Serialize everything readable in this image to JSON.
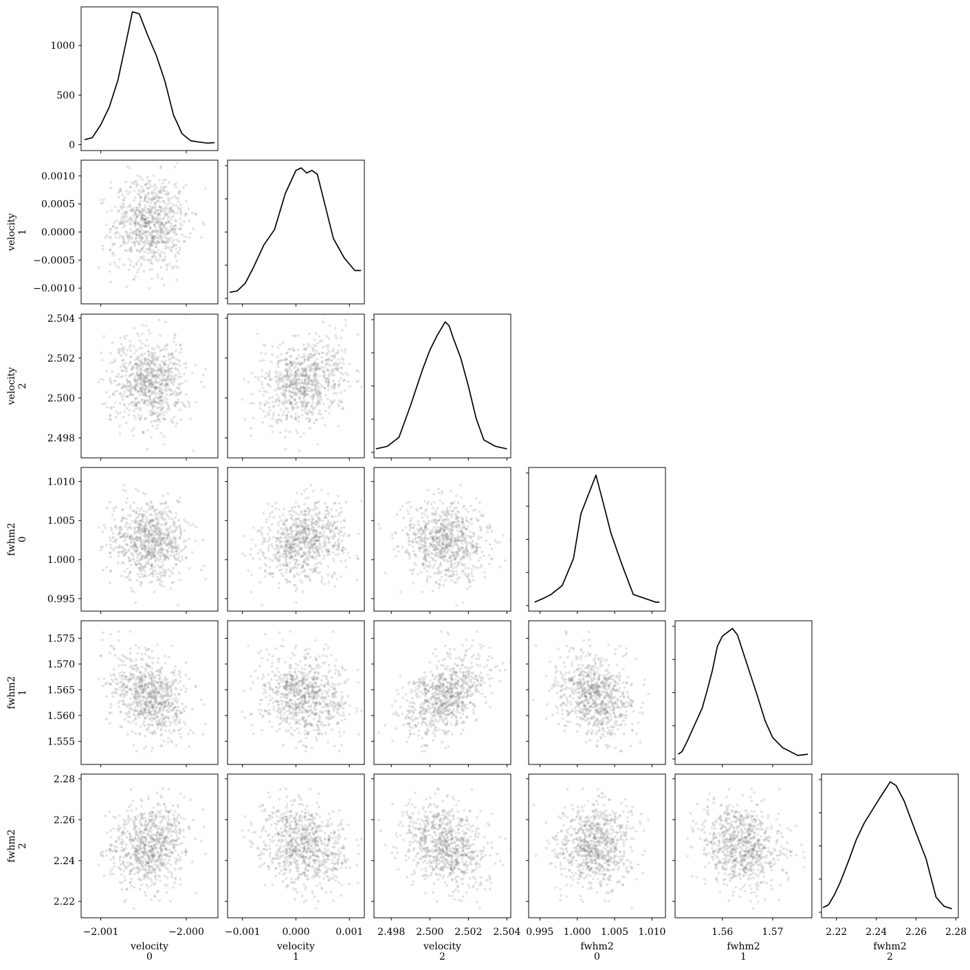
{
  "chart_data": {
    "type": "corner",
    "title": "",
    "params": [
      {
        "label_top": "velocity",
        "label_bottom": "0",
        "range": [
          -2.00123,
          -1.99963
        ],
        "ticks": [
          -2.001,
          -2.0
        ],
        "tick_labels": [
          "−2.001",
          "−2.000"
        ]
      },
      {
        "label_top": "velocity",
        "label_bottom": "1",
        "range": [
          -0.00128,
          0.00128
        ],
        "ticks": [
          -0.001,
          0.0,
          0.001
        ],
        "tick_labels": [
          "−0.001",
          "0.000",
          "0.001"
        ]
      },
      {
        "label_top": "velocity",
        "label_bottom": "2",
        "range": [
          2.4971,
          2.5042
        ],
        "ticks": [
          2.498,
          2.5,
          2.502,
          2.504
        ],
        "tick_labels": [
          "2.498",
          "2.500",
          "2.502",
          "2.504"
        ]
      },
      {
        "label_top": "fwhm2",
        "label_bottom": "0",
        "range": [
          0.9935,
          1.0118
        ],
        "ticks": [
          0.995,
          1.0,
          1.005,
          1.01
        ],
        "tick_labels": [
          "0.995",
          "1.000",
          "1.005",
          "1.010"
        ]
      },
      {
        "label_top": "fwhm2",
        "label_bottom": "1",
        "range": [
          1.5506,
          1.5778
        ],
        "ticks": [
          1.56,
          1.57
        ],
        "tick_labels": [
          "1.56",
          "1.57"
        ]
      },
      {
        "label_top": "fwhm2",
        "label_bottom": "2",
        "range": [
          2.2125,
          2.2812
        ],
        "ticks": [
          2.22,
          2.24,
          2.26,
          2.28
        ],
        "tick_labels": [
          "2.22",
          "2.24",
          "2.26",
          "2.28"
        ]
      }
    ],
    "y_axes": [
      {
        "row": 0,
        "range": [
          -60,
          1390
        ],
        "ticks": [
          0,
          500,
          1000
        ],
        "tick_labels": [
          "0",
          "500",
          "1000"
        ]
      },
      {
        "row": 1,
        "range": [
          -0.00128,
          0.00128
        ],
        "ticks": [
          -0.001,
          -0.0005,
          0.0,
          0.0005,
          0.001
        ],
        "tick_labels": [
          "−0.0010",
          "−0.0005",
          "0.0000",
          "0.0005",
          "0.0010"
        ]
      },
      {
        "row": 2,
        "range": [
          2.497,
          2.5042
        ],
        "ticks": [
          2.498,
          2.5,
          2.502,
          2.504
        ],
        "tick_labels": [
          "2.498",
          "2.500",
          "2.502",
          "2.504"
        ]
      },
      {
        "row": 3,
        "range": [
          0.9934,
          1.0118
        ],
        "ticks": [
          0.995,
          1.0,
          1.005,
          1.01
        ],
        "tick_labels": [
          "0.995",
          "1.000",
          "1.005",
          "1.010"
        ]
      },
      {
        "row": 4,
        "range": [
          1.5505,
          1.5784
        ],
        "ticks": [
          1.555,
          1.56,
          1.565,
          1.57,
          1.575
        ],
        "tick_labels": [
          "1.555",
          "1.560",
          "1.565",
          "1.570",
          "1.575"
        ]
      },
      {
        "row": 5,
        "range": [
          2.212,
          2.2823
        ],
        "ticks": [
          2.22,
          2.24,
          2.26,
          2.28
        ],
        "tick_labels": [
          "2.22",
          "2.24",
          "2.26",
          "2.28"
        ]
      }
    ],
    "diagonal_kde": [
      {
        "param": 0,
        "x": [
          -2.00119,
          -2.0011,
          -2.001,
          -2.0009,
          -2.0008,
          -2.0007,
          -2.00063,
          -2.00055,
          -2.00045,
          -2.00035,
          -2.00025,
          -2.00015,
          -2.00005,
          -1.99995,
          -1.99985,
          -1.99975,
          -1.99967
        ],
        "y": [
          50,
          70,
          200,
          380,
          650,
          1050,
          1340,
          1320,
          1100,
          900,
          640,
          300,
          110,
          40,
          25,
          15,
          20
        ]
      },
      {
        "param": 1,
        "x": [
          -0.00124,
          -0.0011,
          -0.00095,
          -0.0008,
          -0.0006,
          -0.0004,
          -0.0002,
          0.0,
          0.0001,
          0.0002,
          0.0003,
          0.0004,
          0.00055,
          0.0007,
          0.0009,
          0.0011,
          0.00122
        ],
        "y": [
          0.03,
          0.04,
          0.1,
          0.22,
          0.4,
          0.52,
          0.8,
          0.98,
          1.0,
          0.96,
          0.98,
          0.95,
          0.7,
          0.45,
          0.3,
          0.2,
          0.2
        ]
      },
      {
        "param": 2,
        "x": [
          2.4972,
          2.4978,
          2.4984,
          2.499,
          2.4996,
          2.5,
          2.5004,
          2.5008,
          2.501,
          2.5012,
          2.5016,
          2.502,
          2.5024,
          2.5028,
          2.5034,
          2.504
        ],
        "y": [
          0.01,
          0.03,
          0.1,
          0.35,
          0.62,
          0.78,
          0.9,
          1.0,
          0.97,
          0.88,
          0.72,
          0.5,
          0.25,
          0.08,
          0.03,
          0.01
        ]
      },
      {
        "param": 3,
        "x": [
          0.9943,
          0.9955,
          0.9965,
          0.998,
          0.9995,
          1.0005,
          1.0015,
          1.0025,
          1.0035,
          1.0045,
          1.006,
          1.0075,
          1.009,
          1.0105,
          1.011
        ],
        "y": [
          0.01,
          0.04,
          0.07,
          0.14,
          0.35,
          0.7,
          0.85,
          1.0,
          0.78,
          0.55,
          0.3,
          0.07,
          0.04,
          0.01,
          0.01
        ]
      },
      {
        "param": 4,
        "x": [
          1.5512,
          1.552,
          1.553,
          1.5545,
          1.556,
          1.557,
          1.558,
          1.559,
          1.56,
          1.561,
          1.562,
          1.563,
          1.564,
          1.5655,
          1.567,
          1.5685,
          1.57,
          1.572,
          1.575,
          1.577
        ],
        "y": [
          0.02,
          0.04,
          0.12,
          0.25,
          0.38,
          0.52,
          0.67,
          0.86,
          0.94,
          0.97,
          1.0,
          0.95,
          0.83,
          0.65,
          0.47,
          0.28,
          0.15,
          0.07,
          0.01,
          0.02
        ]
      },
      {
        "param": 5,
        "x": [
          2.2132,
          2.216,
          2.219,
          2.222,
          2.226,
          2.23,
          2.234,
          2.238,
          2.242,
          2.245,
          2.247,
          2.25,
          2.254,
          2.26,
          2.265,
          2.27,
          2.274,
          2.278
        ],
        "y": [
          0.02,
          0.04,
          0.12,
          0.22,
          0.38,
          0.55,
          0.68,
          0.78,
          0.88,
          0.95,
          1.0,
          0.97,
          0.85,
          0.6,
          0.4,
          0.1,
          0.03,
          0.01
        ]
      }
    ],
    "scatter": {
      "n_samples": 800,
      "means": [
        -2.000435,
        0.00015,
        2.50082,
        1.00245,
        1.564,
        2.247
      ],
      "sds": [
        0.00022,
        0.00042,
        0.00105,
        0.0027,
        0.004,
        0.01
      ],
      "correlations": [
        {
          "i": 0,
          "j": 1,
          "r": 0.05
        },
        {
          "i": 0,
          "j": 2,
          "r": -0.05
        },
        {
          "i": 0,
          "j": 3,
          "r": -0.05
        },
        {
          "i": 0,
          "j": 4,
          "r": -0.3
        },
        {
          "i": 0,
          "j": 5,
          "r": 0.15
        },
        {
          "i": 1,
          "j": 2,
          "r": 0.25
        },
        {
          "i": 1,
          "j": 3,
          "r": 0.15
        },
        {
          "i": 1,
          "j": 4,
          "r": -0.1
        },
        {
          "i": 1,
          "j": 5,
          "r": -0.2
        },
        {
          "i": 2,
          "j": 3,
          "r": -0.1
        },
        {
          "i": 2,
          "j": 4,
          "r": 0.4
        },
        {
          "i": 2,
          "j": 5,
          "r": -0.25
        },
        {
          "i": 3,
          "j": 4,
          "r": -0.25
        },
        {
          "i": 3,
          "j": 5,
          "r": 0.1
        },
        {
          "i": 4,
          "j": 5,
          "r": -0.2
        }
      ],
      "point_color": "#808080",
      "point_opacity": 0.22
    },
    "line_color": "#000000",
    "grid": false,
    "legend": "none"
  }
}
